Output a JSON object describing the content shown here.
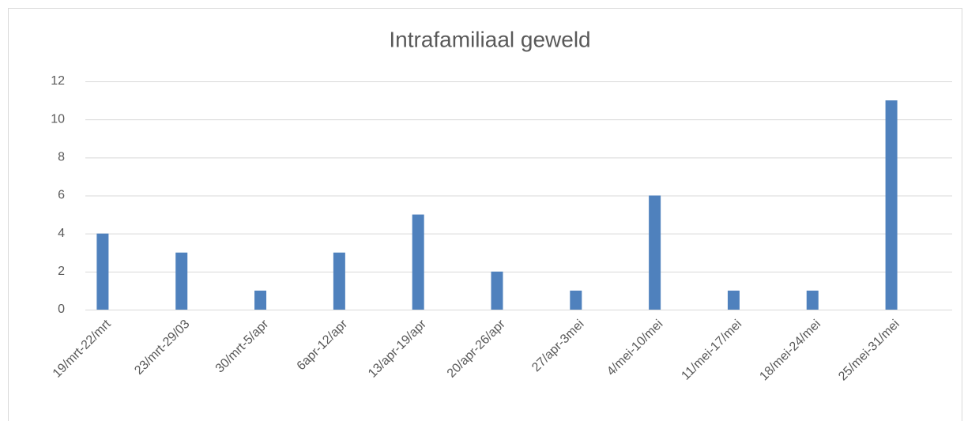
{
  "chart_data": {
    "type": "bar",
    "title": "Intrafamiliaal geweld",
    "categories": [
      "19/mrt-22/mrt",
      "23/mrt-29/03",
      "30/mrt-5/apr",
      "6apr-12/apr",
      "13/apr-19/apr",
      "20/apr-26/apr",
      "27/apr-3mei",
      "4/mei-10/mei",
      "11/mei-17/mei",
      "18/mei-24/mei",
      "25/mei-31/mei"
    ],
    "values": [
      4,
      3,
      1,
      3,
      5,
      2,
      1,
      6,
      1,
      1,
      11
    ],
    "color": "#4f81bd",
    "ylim": [
      0,
      12
    ],
    "yticks": [
      0,
      2,
      4,
      6,
      8,
      10,
      12
    ],
    "grid": true
  }
}
